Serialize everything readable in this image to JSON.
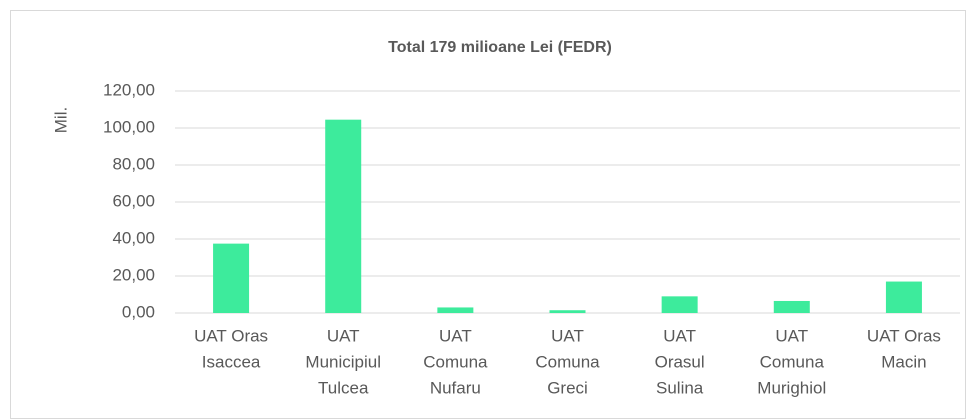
{
  "chart_data": {
    "type": "bar",
    "title": "Total 179 milioane Lei (FEDR)",
    "y_label": "Mil.",
    "categories": [
      [
        "UAT Oras",
        "Isaccea"
      ],
      [
        "UAT",
        "Municipiul",
        "Tulcea"
      ],
      [
        "UAT",
        "Comuna",
        "Nufaru"
      ],
      [
        "UAT",
        "Comuna",
        "Greci"
      ],
      [
        "UAT",
        "Orasul",
        "Sulina"
      ],
      [
        "UAT",
        "Comuna",
        "Murighiol"
      ],
      [
        "UAT Oras",
        "Macin"
      ]
    ],
    "values": [
      37.5,
      104.5,
      3,
      1.5,
      9,
      6.5,
      17
    ],
    "color": "#3deb9c",
    "ylim": [
      0,
      120
    ],
    "yticks": [
      {
        "value": 0,
        "label": "0,00"
      },
      {
        "value": 20,
        "label": "20,00"
      },
      {
        "value": 40,
        "label": "40,00"
      },
      {
        "value": 60,
        "label": "60,00"
      },
      {
        "value": 80,
        "label": "80,00"
      },
      {
        "value": 100,
        "label": "100,00"
      },
      {
        "value": 120,
        "label": "120,00"
      }
    ],
    "grid": true
  }
}
